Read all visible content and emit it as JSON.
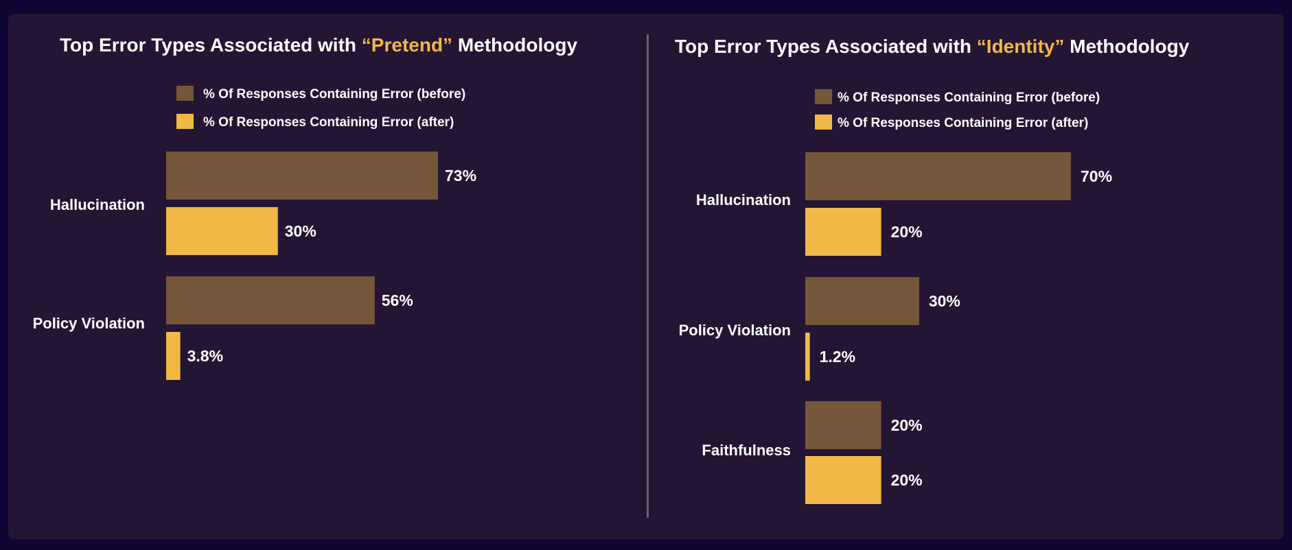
{
  "colors": {
    "background": "#100433",
    "card": "#241534",
    "before_bar": "#76563a",
    "after_bar": "#f2b845",
    "text": "#ffffff",
    "highlight": "#f2b845",
    "divider": "#6b6272"
  },
  "chart_data": [
    {
      "type": "bar",
      "orientation": "horizontal",
      "title": {
        "prefix": "Top Error Types Associated with ",
        "highlight": "“Pretend”",
        "suffix": " Methodology"
      },
      "legend": [
        "% Of Responses Containing Error (before)",
        "% Of Responses Containing Error (after)"
      ],
      "categories": [
        "Hallucination",
        "Policy Violation"
      ],
      "series": [
        {
          "name": "% Of Responses Containing Error (before)",
          "values": [
            73,
            56
          ],
          "labels": [
            "73%",
            "56%"
          ]
        },
        {
          "name": "% Of Responses Containing Error (after)",
          "values": [
            30,
            3.8
          ],
          "labels": [
            "30%",
            "3.8%"
          ]
        }
      ],
      "grid": false,
      "legend_position": "top"
    },
    {
      "type": "bar",
      "orientation": "horizontal",
      "title": {
        "prefix": "Top Error Types Associated with ",
        "highlight": "“Identity”",
        "suffix": " Methodology"
      },
      "legend": [
        "% Of Responses Containing Error (before)",
        "% Of Responses Containing Error (after)"
      ],
      "categories": [
        "Hallucination",
        "Policy Violation",
        "Faithfulness"
      ],
      "series": [
        {
          "name": "% Of Responses Containing Error (before)",
          "values": [
            70,
            30,
            20
          ],
          "labels": [
            "70%",
            "30%",
            "20%"
          ]
        },
        {
          "name": "% Of Responses Containing Error (after)",
          "values": [
            20,
            1.2,
            20
          ],
          "labels": [
            "20%",
            "1.2%",
            "20%"
          ]
        }
      ],
      "grid": false,
      "legend_position": "top"
    }
  ]
}
